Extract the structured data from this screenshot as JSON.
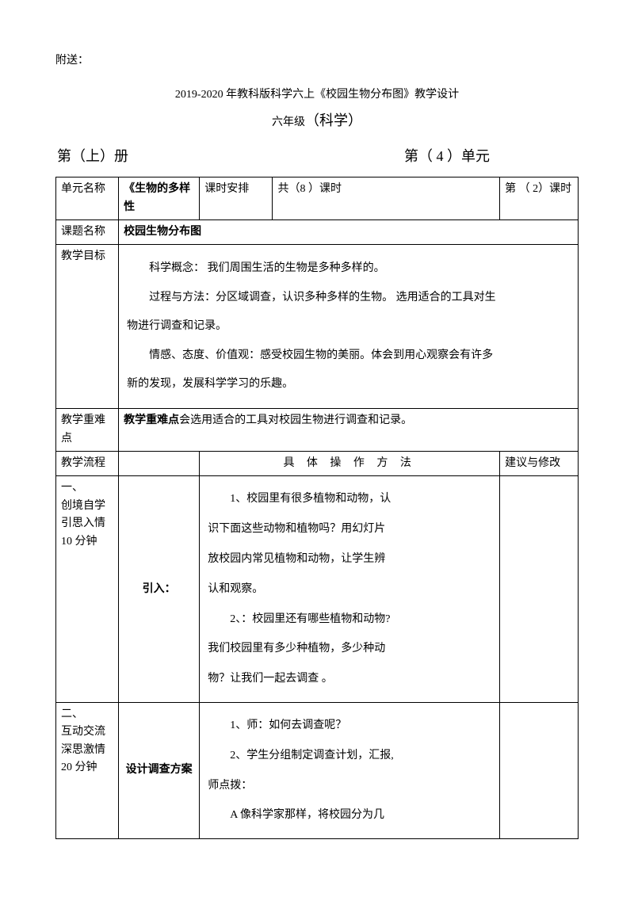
{
  "pre": "附送：",
  "title": "2019-2020 年教科版科学六上《校园生物分布图》教学设计",
  "grade_prefix": "六年级",
  "grade_subject": "（科学）",
  "book_left_a": "第（上）册",
  "book_right_a": "第（ 4 ）单元",
  "row1": {
    "c1": "单元名称",
    "c2": "《生物的多样性",
    "c3": "课时安排",
    "c4": "共（8 ）课时",
    "c5": "第 （ 2）课时"
  },
  "row2": {
    "c1": "课题名称",
    "c2": "校园生物分布图"
  },
  "row3": {
    "c1": "教学目标",
    "p1": "科学概念： 我们周围生活的生物是多种多样的。",
    "p2": "过程与方法：分区域调查，认识多种多样的生物。  选用适合的工具对生",
    "p3": "物进行调查和记录。",
    "p4": "情感、态度、价值观：感受校园生物的美丽。体会到用心观察会有许多",
    "p5": "新的发现，发展科学学习的乐趣。"
  },
  "row4": {
    "c1": "教学重难点",
    "c2a": "教学重难点",
    "c2b": "会选用适合的工具对校园生物进行调查和记录。"
  },
  "row5": {
    "c1": "教学流程",
    "c3": "具 体 操 作 方 法",
    "c5": "建议与修改"
  },
  "row6": {
    "c1a": "一、",
    "c1b": "创境自学",
    "c1c": "引思入情",
    "c1d": "10 分钟",
    "c2": "引入：",
    "p1": "1、校园里有很多植物和动物，认",
    "p2": "识下面这些动物和植物吗？用幻灯片",
    "p3": "放校园内常见植物和动物，让学生辨",
    "p4": "认和观察。",
    "p5": "2、：校园里还有哪些植物和动物?",
    "p6": "我们校园里有多少种植物，多少种动",
    "p7": "物？让我们一起去调查 。"
  },
  "row7": {
    "c1a": "二、",
    "c1b": "互动交流",
    "c1c": "深思激情",
    "c1d": "20 分钟",
    "c2": "设计调查方案",
    "p1": "1、师：如何去调查呢？",
    "p2": "2、学生分组制定调查计划，汇报,",
    "p3": "师点拨：",
    "p4": "A 像科学家那样，将校园分为几"
  }
}
